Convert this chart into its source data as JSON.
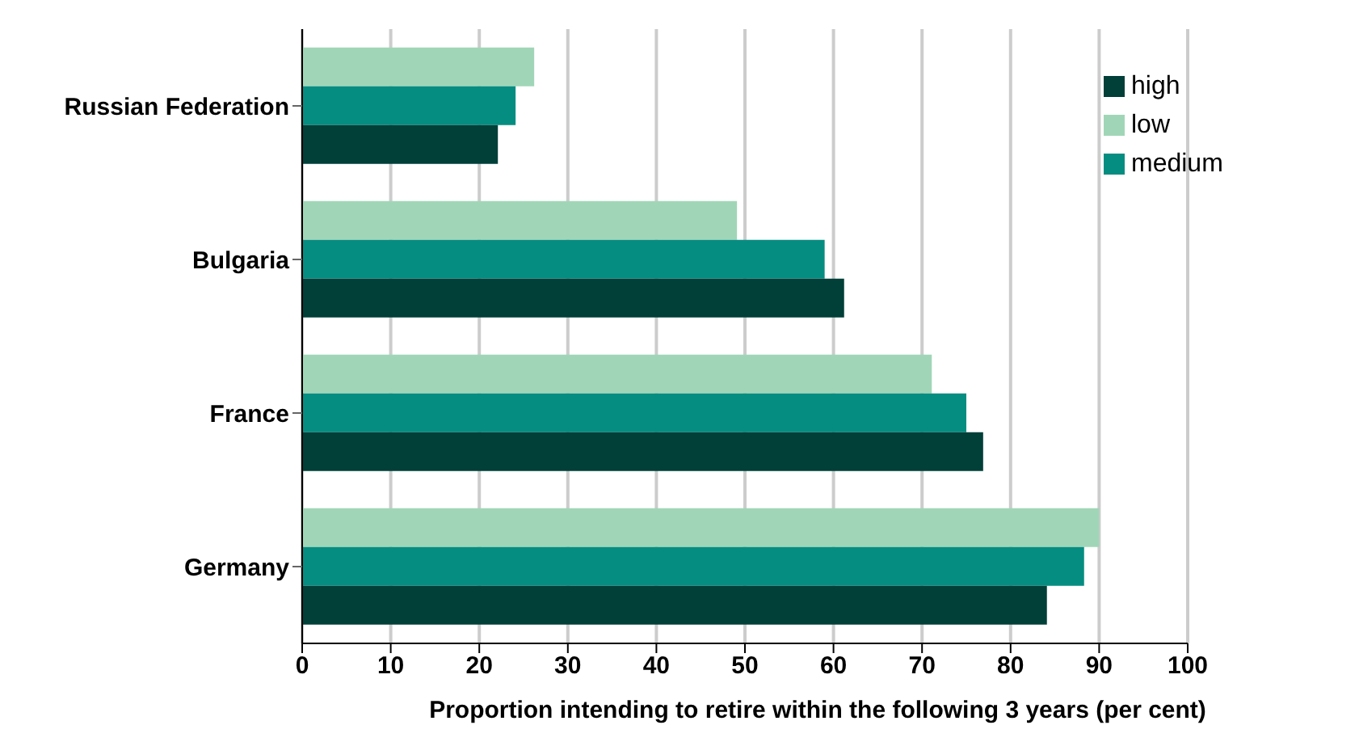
{
  "chart_data": {
    "type": "bar",
    "orientation": "horizontal",
    "xlabel": "Proportion intending to retire within the following 3 years (per cent)",
    "categories": [
      "Russian Federation",
      "Bulgaria",
      "France",
      "Germany"
    ],
    "series": [
      {
        "name": "low",
        "color": "#a0d6b7",
        "values": [
          26.2,
          49.1,
          71.1,
          90
        ]
      },
      {
        "name": "medium",
        "color": "#068d81",
        "values": [
          24.1,
          59,
          75,
          88.3
        ]
      },
      {
        "name": "high",
        "color": "#013f39",
        "values": [
          22.1,
          61.2,
          76.9,
          84.1
        ]
      }
    ],
    "xlim": [
      0,
      100
    ],
    "xticks": [
      0,
      10,
      20,
      30,
      40,
      50,
      60,
      70,
      80,
      90,
      100
    ],
    "grid": "x",
    "legend": "top right"
  }
}
